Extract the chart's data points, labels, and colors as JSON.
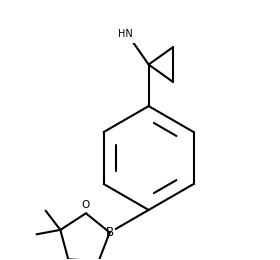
{
  "bg_color": "#ffffff",
  "lc": "#000000",
  "lw": 1.5,
  "fs": 7.5,
  "fig_w": 2.8,
  "fig_h": 2.6,
  "dpi": 100,
  "xlim": [
    -1.65,
    1.45
  ],
  "ylim": [
    -1.25,
    1.25
  ]
}
